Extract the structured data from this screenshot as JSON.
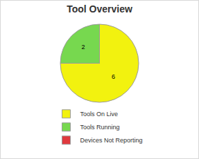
{
  "chart_data": {
    "type": "pie",
    "title": "Tool Overview",
    "categories": [
      "Tools On Live",
      "Tools Running",
      "Devices Not Reporting"
    ],
    "values": [
      6,
      2,
      0
    ],
    "colors": [
      "#f2f20f",
      "#77d84f",
      "#e0393e"
    ],
    "data_labels": true,
    "legend": "bottom"
  }
}
